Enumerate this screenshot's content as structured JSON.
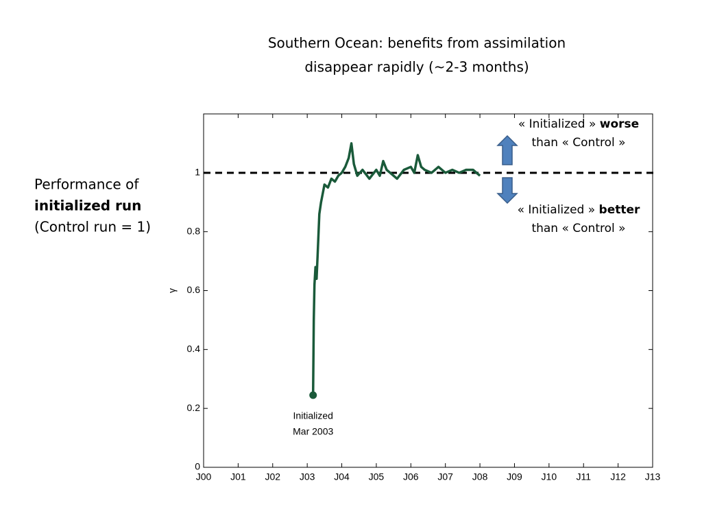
{
  "title": [
    "Southern Ocean: benefits from assimilation",
    "disappear rapidly (~2-3 months)"
  ],
  "left_label": [
    "Performance of",
    "initialized run",
    "(Control run = 1)"
  ],
  "upper_note": {
    "line1": "« Initialized »",
    "bold": "worse",
    "line2": "than « Control »"
  },
  "lower_note": {
    "line1": "« Initialized »",
    "bold": "better",
    "line2": "than « Control »"
  },
  "chart_data": {
    "type": "line",
    "ylabel": "γ",
    "color": "#1a5a3a",
    "reference_line": 1,
    "annotation": [
      "Initialized",
      "Mar 2003"
    ],
    "x": [
      2003.17,
      2003.19,
      2003.21,
      2003.24,
      2003.27,
      2003.3,
      2003.35,
      2003.4,
      2003.45,
      2003.5,
      2003.6,
      2003.7,
      2003.8,
      2003.9,
      2004.0,
      2004.1,
      2004.2,
      2004.28,
      2004.35,
      2004.45,
      2004.6,
      2004.8,
      2005.0,
      2005.1,
      2005.2,
      2005.3,
      2005.4,
      2005.6,
      2005.8,
      2006.0,
      2006.1,
      2006.2,
      2006.3,
      2006.4,
      2006.6,
      2006.8,
      2007.0,
      2007.2,
      2007.4,
      2007.6,
      2007.8,
      2008.0
    ],
    "values": [
      0.245,
      0.5,
      0.62,
      0.68,
      0.64,
      0.72,
      0.86,
      0.9,
      0.93,
      0.96,
      0.95,
      0.98,
      0.97,
      0.99,
      1.0,
      1.02,
      1.05,
      1.1,
      1.03,
      0.99,
      1.01,
      0.98,
      1.01,
      0.99,
      1.04,
      1.01,
      1.0,
      0.98,
      1.01,
      1.02,
      1.0,
      1.06,
      1.02,
      1.01,
      1.0,
      1.02,
      1.0,
      1.01,
      1.0,
      1.01,
      1.01,
      0.99
    ],
    "xlim": [
      2000,
      2013
    ],
    "xticks": [
      {
        "value": 2000,
        "label": "J00"
      },
      {
        "value": 2001,
        "label": "J01"
      },
      {
        "value": 2002,
        "label": "J02"
      },
      {
        "value": 2003,
        "label": "J03"
      },
      {
        "value": 2004,
        "label": "J04"
      },
      {
        "value": 2005,
        "label": "J05"
      },
      {
        "value": 2006,
        "label": "J06"
      },
      {
        "value": 2007,
        "label": "J07"
      },
      {
        "value": 2008,
        "label": "J08"
      },
      {
        "value": 2009,
        "label": "J09"
      },
      {
        "value": 2010,
        "label": "J10"
      },
      {
        "value": 2011,
        "label": "J11"
      },
      {
        "value": 2012,
        "label": "J12"
      },
      {
        "value": 2013,
        "label": "J13"
      }
    ],
    "ylim": [
      0,
      1.2
    ],
    "yticks": [
      0,
      0.2,
      0.4,
      0.6,
      0.8,
      1
    ]
  }
}
